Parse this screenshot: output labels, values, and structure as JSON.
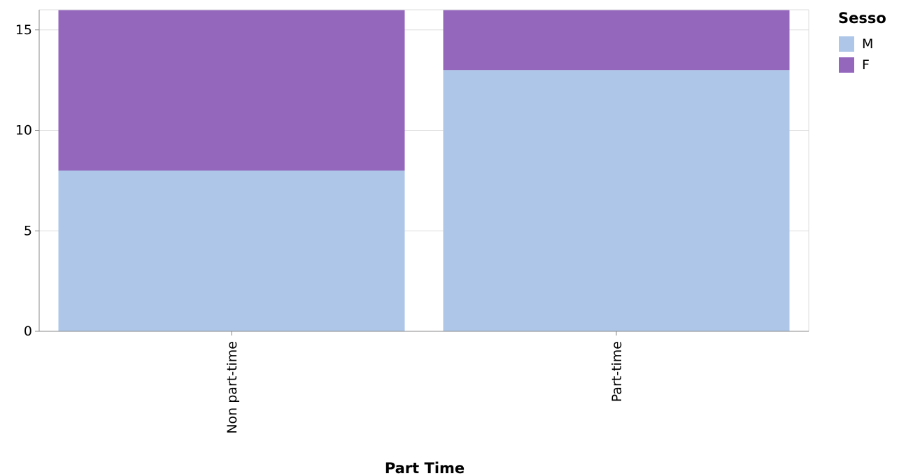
{
  "chart_data": {
    "type": "bar",
    "stacked": true,
    "categories": [
      "Non part-time",
      "Part-time"
    ],
    "series": [
      {
        "name": "M",
        "values": [
          8,
          13
        ],
        "color": "#aec7e8"
      },
      {
        "name": "F",
        "values": [
          9,
          5
        ],
        "color": "#9467bd"
      }
    ],
    "xlabel": "Part Time",
    "ylabel": "",
    "ylim": [
      0,
      16
    ],
    "yticks": [
      0,
      5,
      10,
      15
    ],
    "grid": true,
    "legend": {
      "title": "Sesso",
      "position": "top-right"
    }
  }
}
